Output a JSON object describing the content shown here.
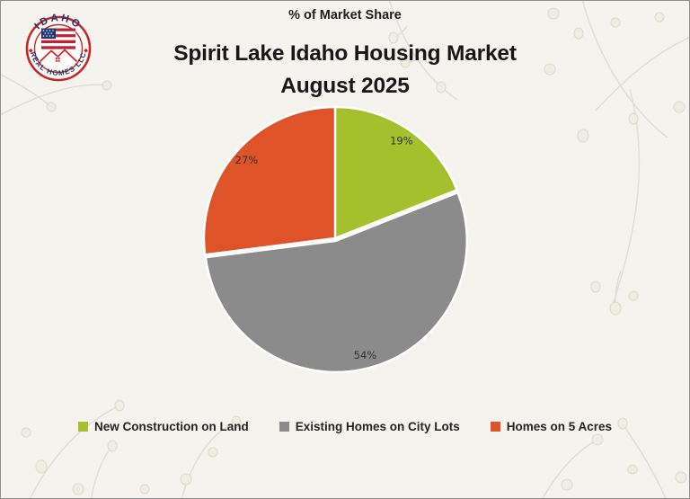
{
  "header": {
    "subtitle": "% of Market Share",
    "title_line1": "Spirit Lake Idaho Housing Market",
    "title_line2": "August 2025"
  },
  "logo": {
    "top_text": "IDAHO",
    "bottom_text": "REAL HOMES LLC"
  },
  "palette": {
    "green": "#a5c02d",
    "gray": "#8b8b8b",
    "orange": "#df5329",
    "logo_red": "#c62828",
    "logo_blue": "#25356e",
    "background": "#f4f3ee",
    "text_dark": "#1d1d1d"
  },
  "chart_data": {
    "type": "pie",
    "title": "Spirit Lake Idaho Housing Market August 2025",
    "subtitle": "% of Market Share",
    "start_angle_deg": 0,
    "direction": "clockwise",
    "legend_position": "bottom",
    "label_radius_ratio": 0.9,
    "slices": [
      {
        "label": "New Construction on Land",
        "value": 19,
        "data_label": "19%",
        "color": "#a5c02d",
        "explode": 0
      },
      {
        "label": "Existing Homes on City Lots",
        "value": 54,
        "data_label": "54%",
        "color": "#8b8b8b",
        "explode": 3
      },
      {
        "label": "Homes on 5 Acres",
        "value": 27,
        "data_label": "27%",
        "color": "#df5329",
        "explode": 0
      }
    ]
  }
}
